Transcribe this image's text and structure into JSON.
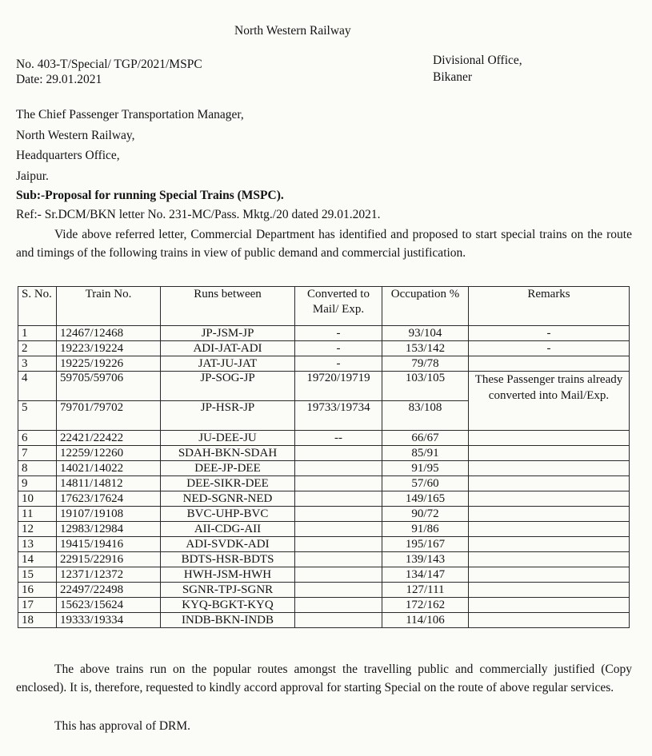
{
  "header": {
    "org": "North Western Railway",
    "ref_no": "No. 403-T/Special/ TGP/2021/MSPC",
    "date": "Date: 29.01.2021",
    "office_line1": "Divisional Office,",
    "office_line2": "Bikaner"
  },
  "addressee": [
    "The Chief Passenger Transportation Manager,",
    "North Western Railway,",
    "Headquarters Office,",
    "Jaipur."
  ],
  "subject": "Sub:-Proposal for running Special Trains (MSPC).",
  "reference": "Ref:- Sr.DCM/BKN letter No. 231-MC/Pass. Mktg./20 dated 29.01.2021.",
  "intro": "Vide above referred letter, Commercial Department has identified and proposed to start special trains on the route and timings of the following trains in view of public demand and commercial justification.",
  "table": {
    "headers": [
      "S. No.",
      "Train No.",
      "Runs between",
      "Converted to Mail/ Exp.",
      "Occupation %",
      "Remarks"
    ],
    "rows": [
      [
        "1",
        "12467/12468",
        "JP-JSM-JP",
        "-",
        "93/104",
        "-"
      ],
      [
        "2",
        "19223/19224",
        "ADI-JAT-ADI",
        "-",
        "153/142",
        "-"
      ],
      [
        "3",
        "19225/19226",
        "JAT-JU-JAT",
        "-",
        "79/78",
        ""
      ],
      [
        "4",
        "59705/59706",
        "JP-SOG-JP",
        "19720/19719",
        "103/105",
        "These Passenger trains already converted into Mail/Exp."
      ],
      [
        "5",
        "79701/79702",
        "JP-HSR-JP",
        "19733/19734",
        "83/108",
        ""
      ],
      [
        "6",
        "22421/22422",
        "JU-DEE-JU",
        "--",
        "66/67",
        ""
      ],
      [
        "7",
        "12259/12260",
        "SDAH-BKN-SDAH",
        "",
        "85/91",
        ""
      ],
      [
        "8",
        "14021/14022",
        "DEE-JP-DEE",
        "",
        "91/95",
        ""
      ],
      [
        "9",
        "14811/14812",
        "DEE-SIKR-DEE",
        "",
        "57/60",
        ""
      ],
      [
        "10",
        "17623/17624",
        "NED-SGNR-NED",
        "",
        "149/165",
        ""
      ],
      [
        "11",
        "19107/19108",
        "BVC-UHP-BVC",
        "",
        "90/72",
        ""
      ],
      [
        "12",
        "12983/12984",
        "AII-CDG-AII",
        "",
        "91/86",
        ""
      ],
      [
        "13",
        "19415/19416",
        "ADI-SVDK-ADI",
        "",
        "195/167",
        ""
      ],
      [
        "14",
        "22915/22916",
        "BDTS-HSR-BDTS",
        "",
        "139/143",
        ""
      ],
      [
        "15",
        "12371/12372",
        "HWH-JSM-HWH",
        "",
        "134/147",
        ""
      ],
      [
        "16",
        "22497/22498",
        "SGNR-TPJ-SGNR",
        "",
        "127/111",
        ""
      ],
      [
        "17",
        "15623/15624",
        "KYQ-BGKT-KYQ",
        "",
        "172/162",
        ""
      ],
      [
        "18",
        "19333/19334",
        "INDB-BKN-INDB",
        "",
        "114/106",
        ""
      ]
    ]
  },
  "closing": "The above trains run on the popular routes amongst the travelling public and commercially justified (Copy enclosed). It is, therefore, requested to kindly accord approval for starting Special on the route of above regular services.",
  "approval": "This has approval of DRM."
}
